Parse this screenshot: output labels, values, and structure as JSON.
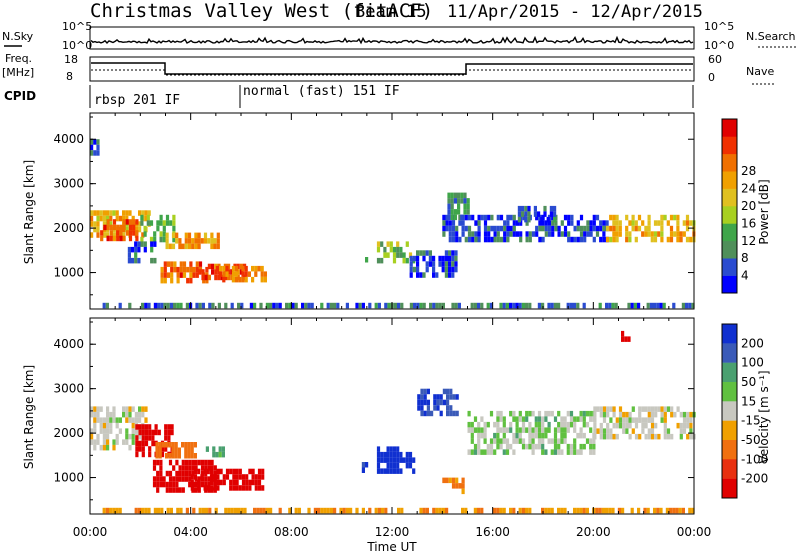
{
  "header": {
    "title": "Christmas Valley West (fitACF)",
    "beam": "Beam 15",
    "date_range": "11/Apr/2015 - 12/Apr/2015"
  },
  "strips": {
    "nsky_label": "N.Sky",
    "nsky_ticks": [
      "10^5",
      "10^0"
    ],
    "nsearch_label": "N.Search",
    "nsearch_ticks": [
      "10^5",
      "10^0"
    ],
    "freq_label_1": "Freq.",
    "freq_label_2": "[MHz]",
    "freq_ticks": [
      "18",
      "8"
    ],
    "nave_label": "Nave",
    "nave_ticks": [
      "60",
      "0"
    ],
    "cpid_label": "CPID",
    "cpid_segments": [
      "rbsp 201 IF",
      "normal (fast) 151 IF"
    ]
  },
  "chart_data": [
    {
      "type": "heatmap",
      "parameter": "Power",
      "ylabel": "Slant Range [km]",
      "xlabel": "Time UT",
      "x_ticks": [
        "00:00",
        "04:00",
        "08:00",
        "12:00",
        "16:00",
        "20:00",
        "00:00"
      ],
      "x_range_hours": [
        0,
        24
      ],
      "y_ticks": [
        1000,
        2000,
        3000,
        4000
      ],
      "ylim": [
        180,
        4590
      ],
      "colorbar": {
        "label": "Power [dB]",
        "ticks": [
          4,
          8,
          12,
          16,
          20,
          24,
          28
        ],
        "colors": [
          "#0000ff",
          "#2a4bd0",
          "#4f8f5a",
          "#3fa54a",
          "#a8d020",
          "#e0c020",
          "#f0a000",
          "#f07000",
          "#f03000",
          "#e00000"
        ]
      },
      "regions": [
        {
          "t": [
            0.0,
            2.3
          ],
          "r": [
            1900,
            2400
          ],
          "v": 20
        },
        {
          "t": [
            0.4,
            1.8
          ],
          "r": [
            1800,
            2200
          ],
          "v": 26
        },
        {
          "t": [
            2.0,
            3.3
          ],
          "r": [
            1700,
            2300
          ],
          "v": 12
        },
        {
          "t": [
            1.5,
            2.6
          ],
          "r": [
            1300,
            1700
          ],
          "v": 8
        },
        {
          "t": [
            3.0,
            5.1
          ],
          "r": [
            1550,
            1900
          ],
          "v": 22
        },
        {
          "t": [
            2.8,
            4.6
          ],
          "r": [
            800,
            1250
          ],
          "v": 26
        },
        {
          "t": [
            4.3,
            6.1
          ],
          "r": [
            850,
            1200
          ],
          "v": 26
        },
        {
          "t": [
            5.0,
            7.0
          ],
          "r": [
            900,
            1150
          ],
          "v": 24
        },
        {
          "t": [
            10.8,
            11.0
          ],
          "r": [
            1150,
            1350
          ],
          "v": 8
        },
        {
          "t": [
            11.4,
            12.8
          ],
          "r": [
            1250,
            1700
          ],
          "v": 14
        },
        {
          "t": [
            12.7,
            14.6
          ],
          "r": [
            900,
            1500
          ],
          "v": 6
        },
        {
          "t": [
            14.0,
            20.5
          ],
          "r": [
            1700,
            2300
          ],
          "v": 6
        },
        {
          "t": [
            14.2,
            15.0
          ],
          "r": [
            2200,
            2800
          ],
          "v": 10
        },
        {
          "t": [
            20.5,
            24.0
          ],
          "r": [
            1800,
            2300
          ],
          "v": 20
        },
        {
          "t": [
            0.5,
            24.0
          ],
          "r": [
            220,
            320
          ],
          "v": 8
        },
        {
          "t": [
            0.0,
            0.3
          ],
          "r": [
            3700,
            4000
          ],
          "v": 6
        },
        {
          "t": [
            17.0,
            18.5
          ],
          "r": [
            2200,
            2500
          ],
          "v": 8
        }
      ]
    },
    {
      "type": "heatmap",
      "parameter": "Velocity",
      "ylabel": "Slant Range [km]",
      "xlabel": "Time UT",
      "x_ticks": [
        "00:00",
        "04:00",
        "08:00",
        "12:00",
        "16:00",
        "20:00",
        "00:00"
      ],
      "x_range_hours": [
        0,
        24
      ],
      "y_ticks": [
        1000,
        2000,
        3000,
        4000
      ],
      "ylim": [
        180,
        4590
      ],
      "colorbar": {
        "label": "Velocity [m s⁻¹]",
        "ticks": [
          200,
          100,
          50,
          15,
          -15,
          -50,
          -100,
          -200
        ],
        "colors": [
          "#1030d0",
          "#3a5ab8",
          "#4aa070",
          "#60c040",
          "#c8c8c0",
          "#f0a000",
          "#f07010",
          "#e83010",
          "#e00000"
        ]
      },
      "regions": [
        {
          "t": [
            0.0,
            2.2
          ],
          "r": [
            1700,
            2600
          ],
          "v": 0
        },
        {
          "t": [
            1.8,
            3.2
          ],
          "r": [
            1500,
            2200
          ],
          "v": -180
        },
        {
          "t": [
            2.6,
            4.2
          ],
          "r": [
            1500,
            1800
          ],
          "v": -80
        },
        {
          "t": [
            2.5,
            5.0
          ],
          "r": [
            700,
            1400
          ],
          "v": -210
        },
        {
          "t": [
            4.0,
            6.8
          ],
          "r": [
            800,
            1200
          ],
          "v": -210
        },
        {
          "t": [
            4.6,
            5.4
          ],
          "r": [
            1500,
            1700
          ],
          "v": 50
        },
        {
          "t": [
            10.8,
            11.0
          ],
          "r": [
            1150,
            1350
          ],
          "v": 150
        },
        {
          "t": [
            11.4,
            12.9
          ],
          "r": [
            1100,
            1700
          ],
          "v": 200
        },
        {
          "t": [
            13.0,
            14.6
          ],
          "r": [
            2500,
            3000
          ],
          "v": 150
        },
        {
          "t": [
            14.0,
            14.8
          ],
          "r": [
            700,
            1000
          ],
          "v": -60
        },
        {
          "t": [
            15.0,
            20.0
          ],
          "r": [
            1600,
            2500
          ],
          "v": 15
        },
        {
          "t": [
            20.0,
            24.0
          ],
          "r": [
            1900,
            2600
          ],
          "v": 0
        },
        {
          "t": [
            0.5,
            24.0
          ],
          "r": [
            220,
            320
          ],
          "v": -40
        },
        {
          "t": [
            21.1,
            21.4
          ],
          "r": [
            4100,
            4300
          ],
          "v": -200
        }
      ]
    }
  ]
}
